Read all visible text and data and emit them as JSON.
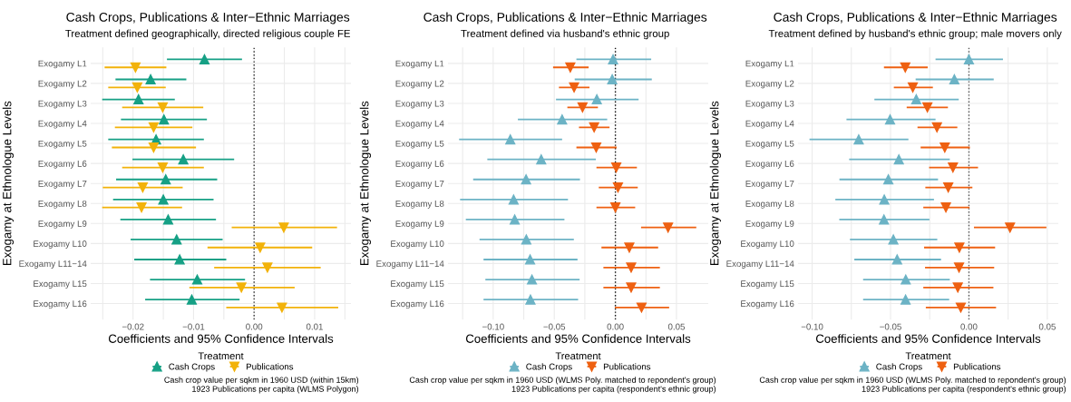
{
  "chart_data": [
    {
      "type": "scatter",
      "orientation": "horizontal",
      "title": "Cash Crops, Publications & Inter−Ethnic Marriages",
      "subtitle": "Treatment defined geographically, directed religious couple FE",
      "xlabel": "Coefficients and 95% Confidence Intervals",
      "ylabel": "Exogamy at Ethnologue Levels",
      "legend_title": "Treatment",
      "legend": "bottom",
      "grid": true,
      "categories": [
        "Exogamy L1",
        "Exogamy L2",
        "Exogamy L3",
        "Exogamy L4",
        "Exogamy L5",
        "Exogamy L6",
        "Exogamy L7",
        "Exogamy L8",
        "Exogamy L9",
        "Exogamy L10",
        "Exogamy L11−14",
        "Exogamy L15",
        "Exogamy L16"
      ],
      "xlim": [
        -0.027,
        0.016
      ],
      "xticks": [
        {
          "value": -0.025,
          "label": null
        },
        {
          "value": -0.02,
          "label": "−0.02"
        },
        {
          "value": -0.015,
          "label": null
        },
        {
          "value": -0.01,
          "label": "−0.01"
        },
        {
          "value": -0.005,
          "label": null
        },
        {
          "value": 0,
          "label": "0.00"
        },
        {
          "value": 0.005,
          "label": null
        },
        {
          "value": 0.01,
          "label": "0.01"
        },
        {
          "value": 0.015,
          "label": null
        }
      ],
      "ref_lines": [
        {
          "axis": "x",
          "value": 0,
          "label": null,
          "color": "#333333",
          "line_style": "dotted"
        }
      ],
      "series": [
        {
          "name": "Cash Crops",
          "color": "#16a085",
          "marker": "triangle",
          "values": [
            -0.0082,
            -0.0171,
            -0.0191,
            -0.0149,
            -0.0162,
            -0.0117,
            -0.0146,
            -0.015,
            -0.0142,
            -0.0128,
            -0.0123,
            -0.0094,
            -0.0103
          ],
          "errors": [
            [
              -0.0144,
              -0.002
            ],
            [
              -0.0229,
              -0.0112
            ],
            [
              -0.0251,
              -0.0131
            ],
            [
              -0.022,
              -0.0078
            ],
            [
              -0.0241,
              -0.0083
            ],
            [
              -0.0201,
              -0.0033
            ],
            [
              -0.0228,
              -0.0061
            ],
            [
              -0.0233,
              -0.0067
            ],
            [
              -0.0221,
              -0.0063
            ],
            [
              -0.0204,
              -0.0052
            ],
            [
              -0.0198,
              -0.0046
            ],
            [
              -0.0172,
              -0.0015
            ],
            [
              -0.018,
              -0.0024
            ]
          ]
        },
        {
          "name": "Publications",
          "color": "#f2b20a",
          "marker": "triangle-down",
          "values": [
            -0.0196,
            -0.0193,
            -0.0151,
            -0.0166,
            -0.0166,
            -0.0151,
            -0.0184,
            -0.0186,
            0.0049,
            0.001,
            0.0022,
            -0.0021,
            0.0046
          ],
          "errors": [
            [
              -0.0247,
              -0.0145
            ],
            [
              -0.0241,
              -0.0146
            ],
            [
              -0.0218,
              -0.0084
            ],
            [
              -0.023,
              -0.0102
            ],
            [
              -0.0235,
              -0.0096
            ],
            [
              -0.0218,
              -0.0083
            ],
            [
              -0.025,
              -0.0118
            ],
            [
              -0.0251,
              -0.0119
            ],
            [
              -0.0037,
              0.0137
            ],
            [
              -0.0077,
              0.0096
            ],
            [
              -0.0066,
              0.011
            ],
            [
              -0.0107,
              0.0067
            ],
            [
              -0.0046,
              0.0139
            ]
          ]
        }
      ],
      "annotations": [
        "Cash crop value per sqkm in 1960 USD (within 15km)",
        "1923 Publications per capita (WLMS Polygon)"
      ]
    },
    {
      "type": "scatter",
      "orientation": "horizontal",
      "title": "Cash Crops, Publications & Inter−Ethnic Marriages",
      "subtitle": "Treatment defined via husband's ethnic group",
      "xlabel": "Coefficients and 95% Confidence Intervals",
      "ylabel": "Exogamy at Ethnologue Levels",
      "legend_title": "Treatment",
      "legend": "bottom",
      "grid": true,
      "categories": [
        "Exogamy L1",
        "Exogamy L2",
        "Exogamy L3",
        "Exogamy L4",
        "Exogamy L5",
        "Exogamy L6",
        "Exogamy L7",
        "Exogamy L8",
        "Exogamy L9",
        "Exogamy L10",
        "Exogamy L11−14",
        "Exogamy L15",
        "Exogamy L16"
      ],
      "xlim": [
        -0.137,
        0.076
      ],
      "xticks": [
        {
          "value": -0.125,
          "label": null
        },
        {
          "value": -0.1,
          "label": "−0.10"
        },
        {
          "value": -0.075,
          "label": null
        },
        {
          "value": -0.05,
          "label": "−0.05"
        },
        {
          "value": -0.025,
          "label": null
        },
        {
          "value": 0,
          "label": "0.00"
        },
        {
          "value": 0.025,
          "label": null
        },
        {
          "value": 0.05,
          "label": "0.05"
        }
      ],
      "ref_lines": [
        {
          "axis": "x",
          "value": 0,
          "label": null,
          "color": "#111111",
          "line_style": "dotted"
        }
      ],
      "series": [
        {
          "name": "Cash Crops",
          "color": "#6cb3c5",
          "marker": "triangle",
          "values": [
            -0.0019,
            -0.0026,
            -0.0152,
            -0.0436,
            -0.086,
            -0.0607,
            -0.0731,
            -0.0833,
            -0.0824,
            -0.0729,
            -0.0698,
            -0.0683,
            -0.0695
          ],
          "errors": [
            [
              -0.0319,
              0.0293
            ],
            [
              -0.0333,
              0.0298
            ],
            [
              -0.0486,
              0.019
            ],
            [
              -0.0798,
              -0.0067
            ],
            [
              -0.1279,
              -0.0436
            ],
            [
              -0.1048,
              -0.016
            ],
            [
              -0.1164,
              -0.029
            ],
            [
              -0.1271,
              -0.0388
            ],
            [
              -0.1224,
              -0.0417
            ],
            [
              -0.1112,
              -0.034
            ],
            [
              -0.1079,
              -0.031
            ],
            [
              -0.1064,
              -0.0293
            ],
            [
              -0.1079,
              -0.0305
            ]
          ]
        },
        {
          "name": "Publications",
          "color": "#ee6011",
          "marker": "triangle-down",
          "values": [
            -0.0369,
            -0.0338,
            -0.0269,
            -0.0174,
            -0.0157,
            0.0007,
            0.0021,
            0.0,
            0.0431,
            0.0114,
            0.0129,
            0.0129,
            0.0214
          ],
          "errors": [
            [
              -0.051,
              -0.0219
            ],
            [
              -0.0462,
              -0.0212
            ],
            [
              -0.0393,
              -0.0143
            ],
            [
              -0.0298,
              -0.0048
            ],
            [
              -0.0319,
              0.001
            ],
            [
              -0.0155,
              0.0176
            ],
            [
              -0.0136,
              0.0183
            ],
            [
              -0.0155,
              0.0162
            ],
            [
              0.021,
              0.0662
            ],
            [
              -0.0114,
              0.035
            ],
            [
              -0.0098,
              0.0364
            ],
            [
              -0.0098,
              0.0364
            ],
            [
              -0.0005,
              0.044
            ]
          ]
        }
      ],
      "annotations": [
        "Cash crop value per sqkm in 1960 USD (WLMS Poly. matched to repondent's group)",
        "1923 Publications per capita (respondent's ethnic group)"
      ]
    },
    {
      "type": "scatter",
      "orientation": "horizontal",
      "title": "Cash Crops, Publications & Inter−Ethnic Marriages",
      "subtitle": "Treatment defined by husband's ethnic group; male movers only",
      "xlabel": "Coefficients and 95% Confidence Intervals",
      "ylabel": "Exogamy at Ethnologue Levels",
      "legend_title": "Treatment",
      "legend": "bottom",
      "grid": true,
      "categories": [
        "Exogamy L1",
        "Exogamy L2",
        "Exogamy L3",
        "Exogamy L4",
        "Exogamy L5",
        "Exogamy L6",
        "Exogamy L7",
        "Exogamy L8",
        "Exogamy L9",
        "Exogamy L10",
        "Exogamy L11−14",
        "Exogamy L15",
        "Exogamy L16"
      ],
      "xlim": [
        -0.109,
        0.057
      ],
      "xticks": [
        {
          "value": -0.1,
          "label": "−0.10"
        },
        {
          "value": -0.075,
          "label": null
        },
        {
          "value": -0.05,
          "label": "−0.05"
        },
        {
          "value": -0.025,
          "label": null
        },
        {
          "value": 0,
          "label": "0.00"
        },
        {
          "value": 0.025,
          "label": null
        },
        {
          "value": 0.05,
          "label": "0.05"
        }
      ],
      "ref_lines": [
        {
          "axis": "x",
          "value": 0,
          "label": null,
          "color": "#555555",
          "line_style": "dotted"
        }
      ],
      "series": [
        {
          "name": "Cash Crops",
          "color": "#6cb3c5",
          "marker": "triangle",
          "values": [
            0.0,
            -0.0093,
            -0.0336,
            -0.0503,
            -0.0703,
            -0.0447,
            -0.0514,
            -0.054,
            -0.0542,
            -0.0482,
            -0.0458,
            -0.0403,
            -0.0404
          ],
          "errors": [
            [
              -0.0213,
              0.0217
            ],
            [
              -0.034,
              0.0158
            ],
            [
              -0.0603,
              -0.0065
            ],
            [
              -0.0781,
              -0.0213
            ],
            [
              -0.1017,
              -0.0386
            ],
            [
              -0.0764,
              -0.0122
            ],
            [
              -0.0826,
              -0.0197
            ],
            [
              -0.0852,
              -0.0223
            ],
            [
              -0.0827,
              -0.0252
            ],
            [
              -0.0759,
              -0.0202
            ],
            [
              -0.0731,
              -0.0178
            ],
            [
              -0.0675,
              -0.0122
            ],
            [
              -0.0675,
              -0.0126
            ]
          ]
        },
        {
          "name": "Publications",
          "color": "#ee6011",
          "marker": "triangle-down",
          "values": [
            -0.0406,
            -0.0358,
            -0.0265,
            -0.0204,
            -0.0154,
            -0.0102,
            -0.0132,
            -0.0147,
            0.0262,
            -0.0061,
            -0.0063,
            -0.0071,
            -0.0052
          ],
          "errors": [
            [
              -0.0542,
              -0.0263
            ],
            [
              -0.0479,
              -0.023
            ],
            [
              -0.0397,
              -0.0134
            ],
            [
              -0.0328,
              -0.0074
            ],
            [
              -0.0308,
              0.0006
            ],
            [
              -0.0254,
              0.0058
            ],
            [
              -0.0278,
              0.0022
            ],
            [
              -0.0291,
              0.0004
            ],
            [
              0.0032,
              0.0494
            ],
            [
              -0.0286,
              0.0167
            ],
            [
              -0.028,
              0.0161
            ],
            [
              -0.0291,
              0.0156
            ],
            [
              -0.0275,
              0.0173
            ]
          ]
        }
      ],
      "annotations": [
        "Cash crop value per sqkm in 1960 USD (WLMS Poly. matched to repondent's group)",
        "1923 Publications per capita (respondent's ethnic group)"
      ]
    }
  ]
}
